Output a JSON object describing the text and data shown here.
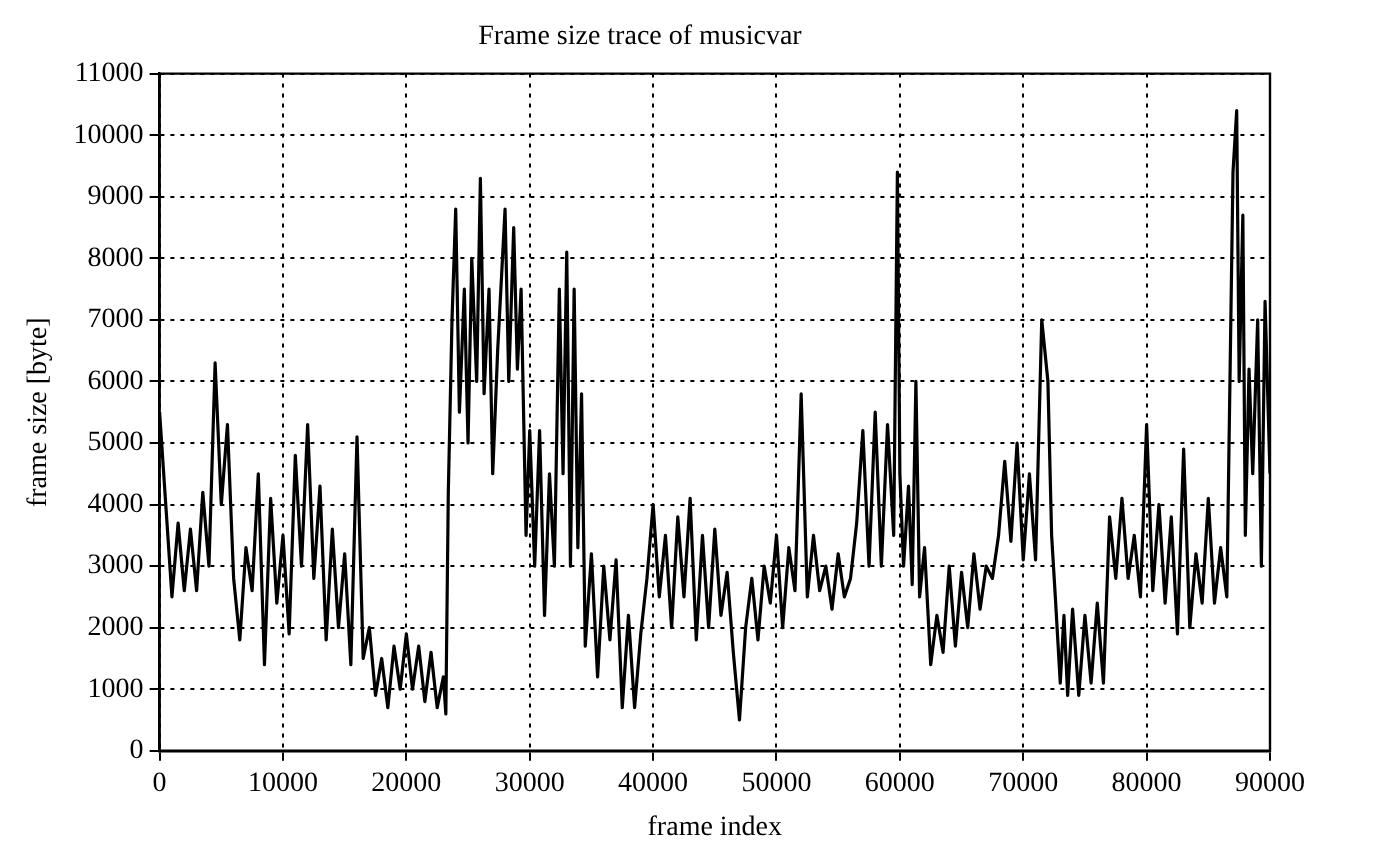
{
  "chart_data": {
    "type": "line",
    "title": "Frame size trace of musicvar",
    "xlabel": "frame index",
    "ylabel": "frame size [byte]",
    "xlim": [
      0,
      90000
    ],
    "xticks": [
      0,
      10000,
      20000,
      30000,
      40000,
      50000,
      60000,
      70000,
      80000,
      90000
    ],
    "ylim": [
      0,
      11000
    ],
    "yticks": [
      0,
      1000,
      2000,
      3000,
      4000,
      5000,
      6000,
      7000,
      8000,
      9000,
      10000,
      11000
    ],
    "grid": true,
    "legend": false,
    "marker": "none",
    "line_style": "solid",
    "series": [
      {
        "color": "#000000",
        "x": [
          0,
          500,
          1000,
          1500,
          2000,
          2500,
          3000,
          3500,
          4000,
          4500,
          5000,
          5500,
          6000,
          6500,
          7000,
          7500,
          8000,
          8500,
          9000,
          9500,
          10000,
          10500,
          11000,
          11500,
          12000,
          12500,
          13000,
          13500,
          14000,
          14500,
          15000,
          15500,
          16000,
          16500,
          17000,
          17500,
          18000,
          18500,
          19000,
          19500,
          20000,
          20500,
          21000,
          21500,
          22000,
          22500,
          23000,
          23200,
          23400,
          23700,
          24000,
          24300,
          24700,
          25000,
          25300,
          25700,
          26000,
          26300,
          26700,
          27000,
          27400,
          28000,
          28300,
          28700,
          29000,
          29300,
          29700,
          30000,
          30400,
          30800,
          31200,
          31600,
          32000,
          32400,
          32700,
          33000,
          33300,
          33600,
          33900,
          34200,
          34500,
          35000,
          35500,
          36000,
          36500,
          37000,
          37500,
          38000,
          38500,
          39000,
          39500,
          40000,
          40500,
          41000,
          41500,
          42000,
          42500,
          43000,
          43500,
          44000,
          44500,
          45000,
          45500,
          46000,
          46500,
          47000,
          47500,
          48000,
          48500,
          49000,
          49500,
          50000,
          50500,
          51000,
          51500,
          52000,
          52500,
          53000,
          53500,
          54000,
          54500,
          55000,
          55500,
          56000,
          56500,
          57000,
          57500,
          58000,
          58500,
          59000,
          59500,
          59800,
          60000,
          60300,
          60700,
          61000,
          61300,
          61600,
          62000,
          62500,
          63000,
          63500,
          64000,
          64500,
          65000,
          65500,
          66000,
          66500,
          67000,
          67500,
          68000,
          68500,
          69000,
          69500,
          70000,
          70500,
          71000,
          71500,
          72000,
          72300,
          72600,
          73000,
          73300,
          73600,
          74000,
          74500,
          75000,
          75500,
          76000,
          76500,
          77000,
          77500,
          78000,
          78500,
          79000,
          79500,
          80000,
          80500,
          81000,
          81500,
          82000,
          82500,
          83000,
          83500,
          84000,
          84500,
          85000,
          85500,
          86000,
          86500,
          87000,
          87300,
          87500,
          87800,
          88000,
          88300,
          88600,
          89000,
          89300,
          89600,
          90000
        ],
        "values": [
          5500,
          4000,
          2500,
          3700,
          2600,
          3600,
          2600,
          4200,
          3000,
          6300,
          4000,
          5300,
          2800,
          1800,
          3300,
          2600,
          4500,
          1400,
          4100,
          2400,
          3500,
          1900,
          4800,
          3000,
          5300,
          2800,
          4300,
          1800,
          3600,
          2000,
          3200,
          1400,
          5100,
          1500,
          2000,
          900,
          1500,
          700,
          1700,
          1000,
          1900,
          1000,
          1700,
          800,
          1600,
          700,
          1200,
          600,
          4200,
          7000,
          8800,
          5500,
          7500,
          5000,
          8000,
          6000,
          9300,
          5800,
          7500,
          4500,
          6500,
          8800,
          6000,
          8500,
          6200,
          7500,
          3500,
          5200,
          3000,
          5200,
          2200,
          4500,
          3000,
          7500,
          4500,
          8100,
          3000,
          7500,
          3300,
          5800,
          1700,
          3200,
          1200,
          3000,
          1800,
          3100,
          700,
          2200,
          700,
          1900,
          2800,
          4000,
          2500,
          3500,
          2000,
          3800,
          2500,
          4100,
          1800,
          3500,
          2000,
          3600,
          2200,
          2900,
          1600,
          500,
          2000,
          2800,
          1800,
          3000,
          2400,
          3500,
          2000,
          3300,
          2600,
          5800,
          2500,
          3500,
          2600,
          3000,
          2300,
          3200,
          2500,
          2800,
          3700,
          5200,
          3000,
          5500,
          3000,
          5300,
          3500,
          9400,
          4500,
          3000,
          4300,
          2700,
          6000,
          2500,
          3300,
          1400,
          2200,
          1600,
          3000,
          1700,
          2900,
          2000,
          3200,
          2300,
          3000,
          2800,
          3500,
          4700,
          3400,
          5000,
          3100,
          4500,
          3100,
          7000,
          6000,
          3500,
          2500,
          1100,
          2200,
          900,
          2300,
          900,
          2200,
          1100,
          2400,
          1100,
          3800,
          2800,
          4100,
          2800,
          3500,
          2500,
          5300,
          2600,
          4000,
          2400,
          3800,
          1900,
          4900,
          2000,
          3200,
          2400,
          4100,
          2400,
          3300,
          2500,
          9400,
          10400,
          6000,
          8700,
          3500,
          6200,
          4500,
          7000,
          3000,
          7300,
          4500
        ]
      }
    ]
  }
}
